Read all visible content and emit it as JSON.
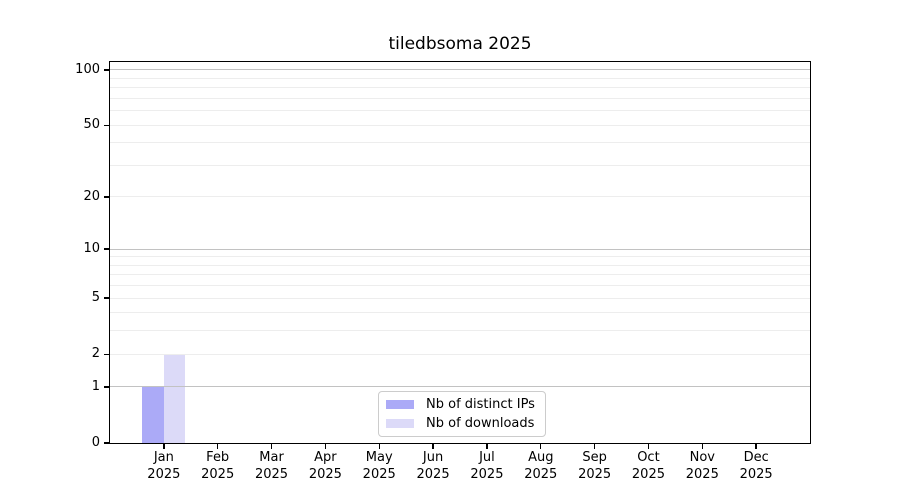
{
  "chart_data": {
    "type": "bar",
    "title": "tiledbsoma 2025",
    "xlabel": "",
    "ylabel": "",
    "categories": [
      "Jan 2025",
      "Feb 2025",
      "Mar 2025",
      "Apr 2025",
      "May 2025",
      "Jun 2025",
      "Jul 2025",
      "Aug 2025",
      "Sep 2025",
      "Oct 2025",
      "Nov 2025",
      "Dec 2025"
    ],
    "series": [
      {
        "name": "Nb of distinct IPs",
        "color": "#abaaf7",
        "values": [
          1,
          0,
          0,
          0,
          0,
          0,
          0,
          0,
          0,
          0,
          0,
          0
        ]
      },
      {
        "name": "Nb of downloads",
        "color": "#dcdaf8",
        "values": [
          2,
          0,
          0,
          0,
          0,
          0,
          0,
          0,
          0,
          0,
          0,
          0
        ]
      }
    ],
    "yscale": "log1p",
    "ylim": [
      0,
      110.5
    ],
    "yticks": [
      0,
      1,
      2,
      5,
      10,
      20,
      50,
      100
    ],
    "grid": {
      "major_values": [
        1,
        10,
        100
      ],
      "minor_values": [
        2,
        3,
        4,
        5,
        6,
        7,
        8,
        9,
        20,
        30,
        40,
        50,
        60,
        70,
        80,
        90
      ]
    },
    "legend_position": "lower center"
  },
  "colors": {
    "bar_distinct_ips": "#abaaf7",
    "bar_downloads": "#dcdaf8",
    "grid_major": "#c2c2c2",
    "grid_minor": "#ededed",
    "axis": "#000000",
    "legend_border": "#cccccc",
    "text": "#000000"
  }
}
